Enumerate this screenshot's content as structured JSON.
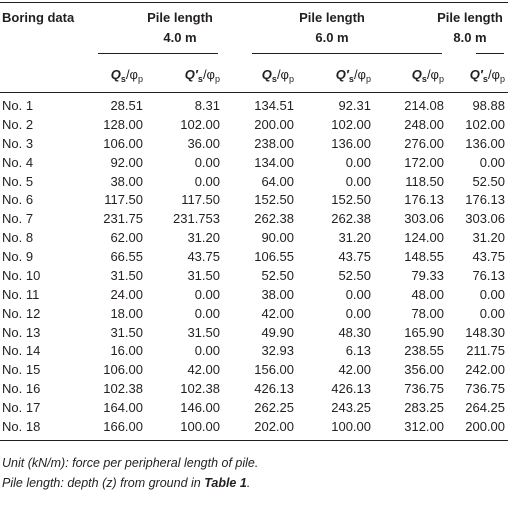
{
  "table": {
    "corner": "Boring data",
    "groups": [
      {
        "title": "Pile length",
        "length": "4.0 m"
      },
      {
        "title": "Pile length",
        "length": "6.0 m"
      },
      {
        "title": "Pile length",
        "length": "8.0 m"
      }
    ],
    "subheaders": [
      [
        "Q",
        "s",
        "/φ",
        "p"
      ],
      [
        "Q′",
        "s",
        "/φ",
        "p"
      ],
      [
        "Q",
        "s",
        "/φ",
        "p"
      ],
      [
        "Q′",
        "s",
        "/φ",
        "p"
      ],
      [
        "Q",
        "s",
        "/φ",
        "p"
      ],
      [
        "Q′",
        "s",
        "/φ",
        "p"
      ]
    ],
    "rows": [
      [
        "No. 1",
        "28.51",
        "8.31",
        "134.51",
        "92.31",
        "214.08",
        "98.88"
      ],
      [
        "No. 2",
        "128.00",
        "102.00",
        "200.00",
        "102.00",
        "248.00",
        "102.00"
      ],
      [
        "No. 3",
        "106.00",
        "36.00",
        "238.00",
        "136.00",
        "276.00",
        "136.00"
      ],
      [
        "No. 4",
        "92.00",
        "0.00",
        "134.00",
        "0.00",
        "172.00",
        "0.00"
      ],
      [
        "No. 5",
        "38.00",
        "0.00",
        "64.00",
        "0.00",
        "118.50",
        "52.50"
      ],
      [
        "No. 6",
        "117.50",
        "117.50",
        "152.50",
        "152.50",
        "176.13",
        "176.13"
      ],
      [
        "No. 7",
        "231.75",
        "231.753",
        "262.38",
        "262.38",
        "303.06",
        "303.06"
      ],
      [
        "No. 8",
        "62.00",
        "31.20",
        "90.00",
        "31.20",
        "124.00",
        "31.20"
      ],
      [
        "No. 9",
        "66.55",
        "43.75",
        "106.55",
        "43.75",
        "148.55",
        "43.75"
      ],
      [
        "No. 10",
        "31.50",
        "31.50",
        "52.50",
        "52.50",
        "79.33",
        "76.13"
      ],
      [
        "No. 11",
        "24.00",
        "0.00",
        "38.00",
        "0.00",
        "48.00",
        "0.00"
      ],
      [
        "No. 12",
        "18.00",
        "0.00",
        "42.00",
        "0.00",
        "78.00",
        "0.00"
      ],
      [
        "No. 13",
        "31.50",
        "31.50",
        "49.90",
        "48.30",
        "165.90",
        "148.30"
      ],
      [
        "No. 14",
        "16.00",
        "0.00",
        "32.93",
        "6.13",
        "238.55",
        "211.75"
      ],
      [
        "No. 15",
        "106.00",
        "42.00",
        "156.00",
        "42.00",
        "356.00",
        "242.00"
      ],
      [
        "No. 16",
        "102.38",
        "102.38",
        "426.13",
        "426.13",
        "736.75",
        "736.75"
      ],
      [
        "No. 17",
        "164.00",
        "146.00",
        "262.25",
        "243.25",
        "283.25",
        "264.25"
      ],
      [
        "No. 18",
        "166.00",
        "100.00",
        "202.00",
        "100.00",
        "312.00",
        "200.00"
      ]
    ],
    "footnotes": {
      "unit": "Unit (kN/m): force per peripheral length of pile.",
      "pile": [
        "Pile length: depth (z) from ground in ",
        "Table 1",
        "."
      ]
    }
  }
}
